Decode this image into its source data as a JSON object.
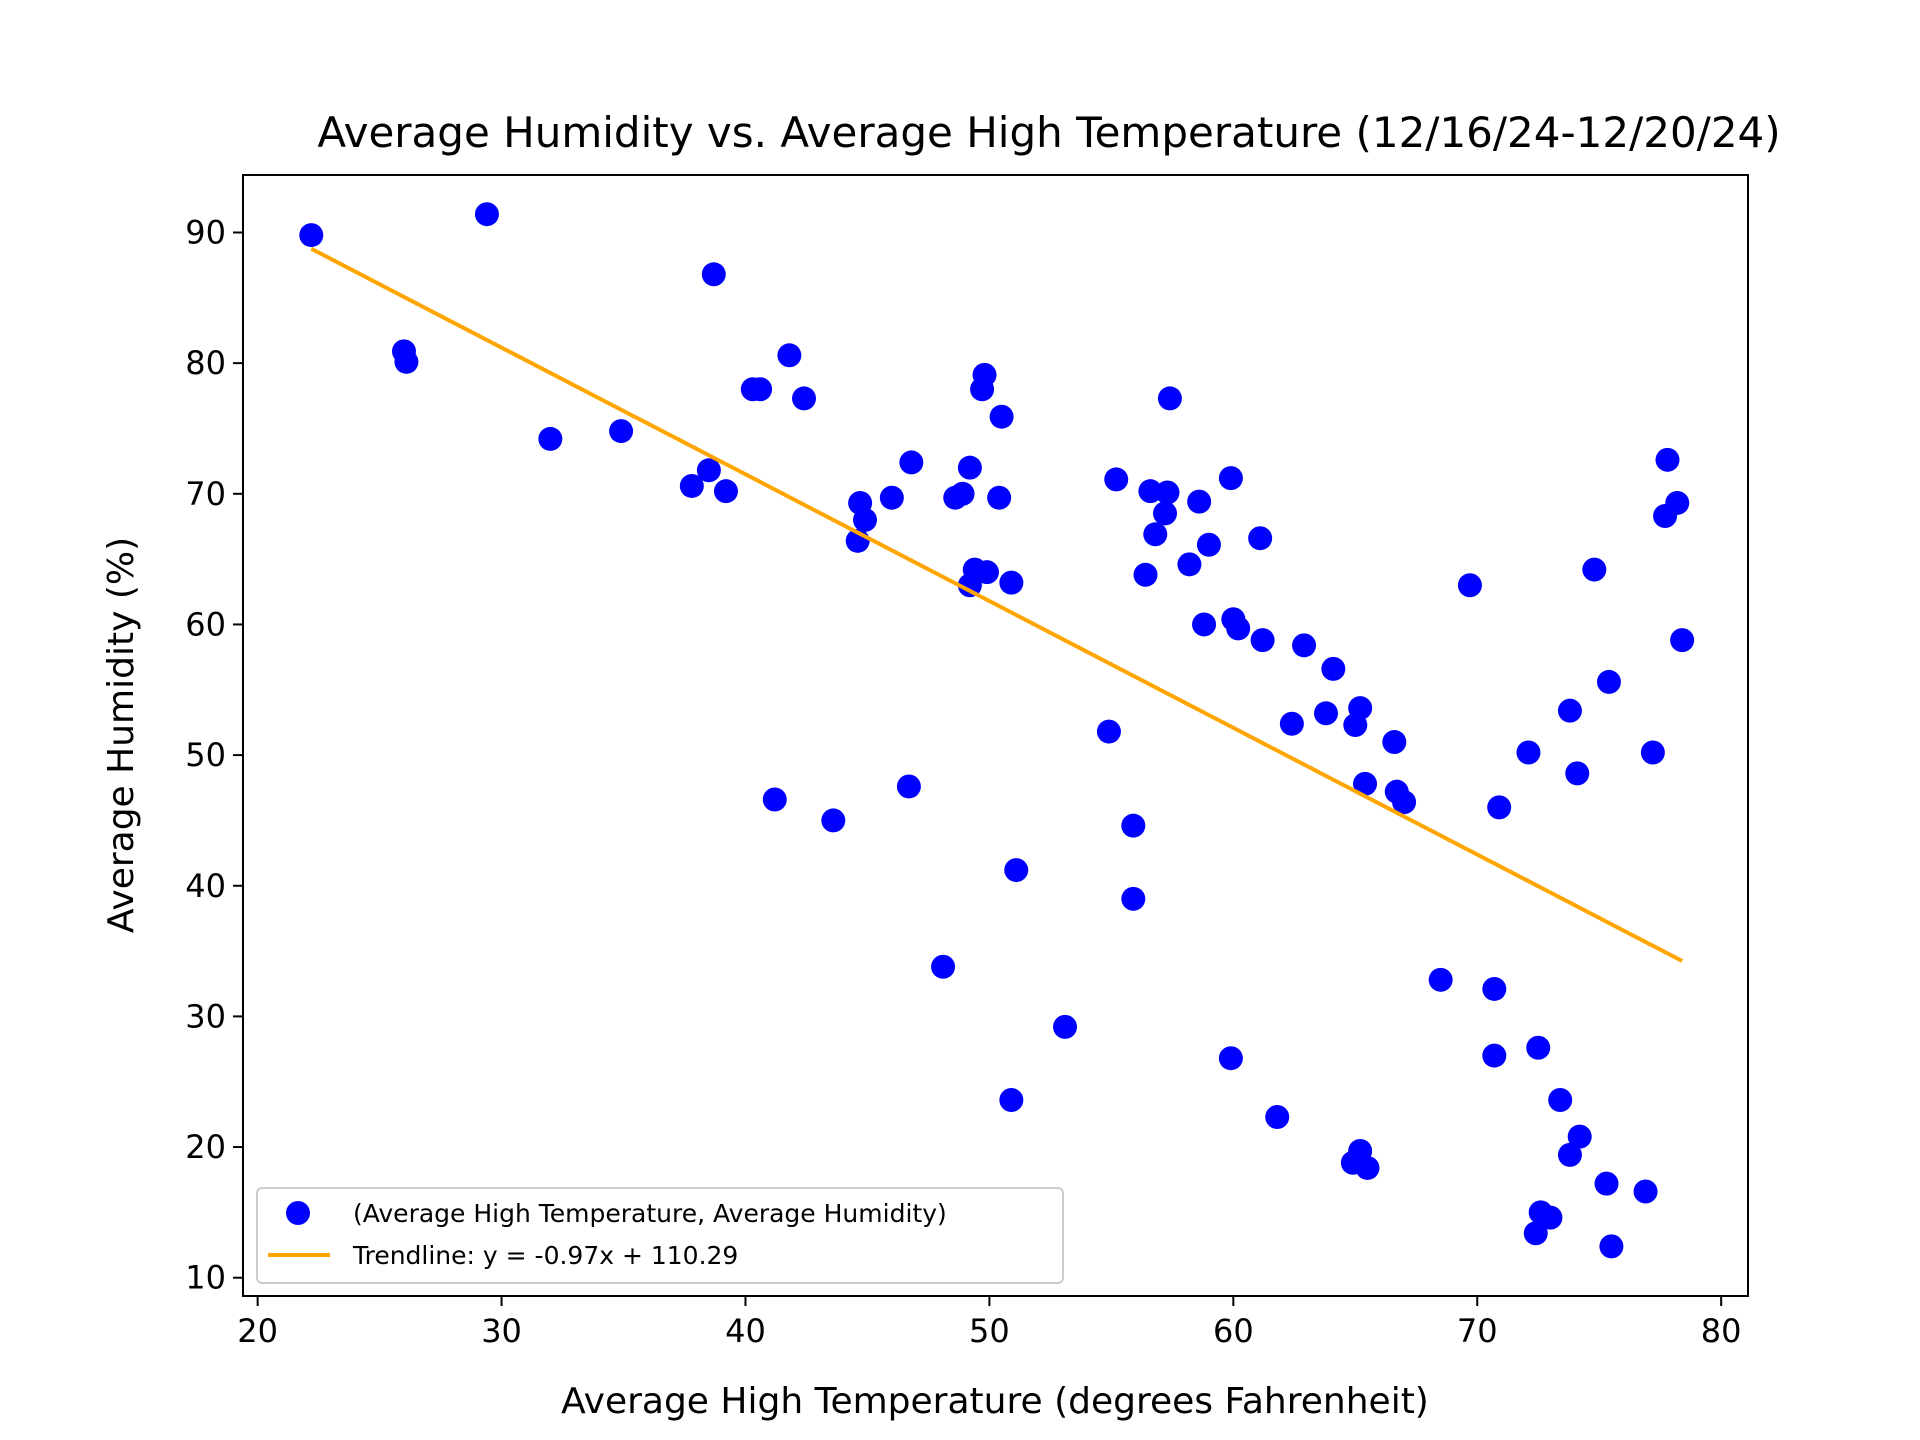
{
  "chart_data": {
    "type": "scatter",
    "title": "Average Humidity vs. Average High Temperature (12/16/24-12/20/24)",
    "xlabel": "Average High Temperature (degrees Fahrenheit)",
    "ylabel": "Average Humidity (%)",
    "xlim": [
      19.4,
      81.1
    ],
    "ylim": [
      8.6,
      94.4
    ],
    "xticks": [
      20,
      30,
      40,
      50,
      60,
      70,
      80
    ],
    "yticks": [
      10,
      20,
      30,
      40,
      50,
      60,
      70,
      80,
      90
    ],
    "grid": false,
    "legend_position": "lower-left",
    "colors": {
      "points": "#0000ff",
      "trendline": "#ffa500"
    },
    "series": [
      {
        "name": "(Average High Temperature, Average Humidity)",
        "kind": "scatter",
        "points": [
          [
            22.2,
            89.8
          ],
          [
            29.4,
            91.4
          ],
          [
            26.0,
            80.9
          ],
          [
            26.1,
            80.1
          ],
          [
            32.0,
            74.2
          ],
          [
            34.9,
            74.8
          ],
          [
            37.8,
            70.6
          ],
          [
            38.5,
            71.8
          ],
          [
            39.2,
            70.2
          ],
          [
            38.7,
            86.8
          ],
          [
            40.3,
            78.0
          ],
          [
            40.6,
            78.0
          ],
          [
            41.8,
            80.6
          ],
          [
            42.4,
            77.3
          ],
          [
            41.2,
            46.6
          ],
          [
            43.6,
            45.0
          ],
          [
            44.7,
            69.3
          ],
          [
            44.9,
            68.0
          ],
          [
            44.6,
            66.4
          ],
          [
            46.0,
            69.7
          ],
          [
            46.8,
            72.4
          ],
          [
            46.7,
            47.6
          ],
          [
            48.1,
            33.8
          ],
          [
            48.6,
            69.7
          ],
          [
            48.9,
            70.0
          ],
          [
            49.2,
            72.0
          ],
          [
            49.8,
            79.1
          ],
          [
            49.7,
            78.0
          ],
          [
            50.5,
            75.9
          ],
          [
            50.4,
            69.7
          ],
          [
            49.4,
            64.2
          ],
          [
            49.9,
            64.0
          ],
          [
            49.2,
            63.0
          ],
          [
            50.9,
            63.2
          ],
          [
            51.1,
            41.2
          ],
          [
            50.9,
            23.6
          ],
          [
            53.1,
            29.2
          ],
          [
            54.9,
            51.8
          ],
          [
            55.2,
            71.1
          ],
          [
            55.9,
            44.6
          ],
          [
            55.9,
            39.0
          ],
          [
            56.4,
            63.8
          ],
          [
            56.6,
            70.2
          ],
          [
            56.8,
            66.9
          ],
          [
            57.2,
            68.5
          ],
          [
            57.3,
            70.1
          ],
          [
            57.4,
            77.3
          ],
          [
            58.2,
            64.6
          ],
          [
            58.6,
            69.4
          ],
          [
            58.8,
            60.0
          ],
          [
            59.0,
            66.1
          ],
          [
            59.9,
            71.2
          ],
          [
            60.0,
            60.4
          ],
          [
            60.2,
            59.7
          ],
          [
            61.1,
            66.6
          ],
          [
            61.2,
            58.8
          ],
          [
            59.9,
            26.8
          ],
          [
            61.8,
            22.3
          ],
          [
            62.4,
            52.4
          ],
          [
            62.9,
            58.4
          ],
          [
            63.8,
            53.2
          ],
          [
            64.1,
            56.6
          ],
          [
            65.0,
            52.3
          ],
          [
            65.2,
            53.6
          ],
          [
            65.4,
            47.8
          ],
          [
            66.6,
            51.0
          ],
          [
            66.7,
            47.2
          ],
          [
            67.0,
            46.4
          ],
          [
            64.9,
            18.8
          ],
          [
            65.2,
            19.7
          ],
          [
            65.5,
            18.4
          ],
          [
            68.5,
            32.8
          ],
          [
            69.7,
            63.0
          ],
          [
            70.7,
            32.1
          ],
          [
            70.7,
            27.0
          ],
          [
            70.9,
            46.0
          ],
          [
            72.1,
            50.2
          ],
          [
            72.5,
            27.6
          ],
          [
            72.4,
            13.4
          ],
          [
            72.6,
            15.0
          ],
          [
            73.0,
            14.6
          ],
          [
            73.4,
            23.6
          ],
          [
            73.8,
            19.4
          ],
          [
            74.2,
            20.8
          ],
          [
            73.8,
            53.4
          ],
          [
            74.1,
            48.6
          ],
          [
            74.8,
            64.2
          ],
          [
            75.4,
            55.6
          ],
          [
            75.3,
            17.2
          ],
          [
            75.5,
            12.4
          ],
          [
            76.9,
            16.6
          ],
          [
            77.2,
            50.2
          ],
          [
            77.7,
            68.3
          ],
          [
            77.8,
            72.6
          ],
          [
            78.2,
            69.3
          ],
          [
            78.4,
            58.8
          ]
        ]
      },
      {
        "name": "Trendline: y = -0.97x + 110.29",
        "kind": "line",
        "slope": -0.97,
        "intercept": 110.29,
        "x_range": [
          22.2,
          78.4
        ]
      }
    ]
  }
}
